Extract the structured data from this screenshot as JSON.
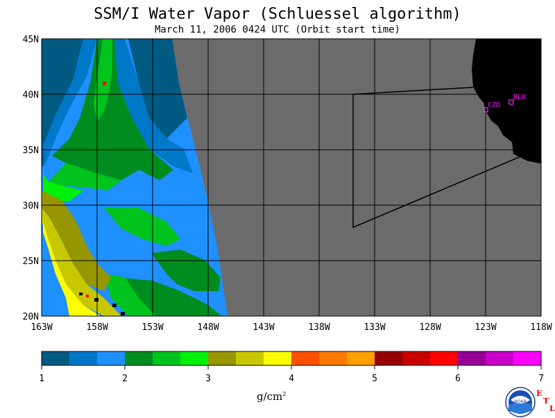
{
  "title": "SSM/I Water Vapor (Schluessel algorithm)",
  "subtitle": "March 11, 2006  0424 UTC  (Orbit start time)",
  "map": {
    "lon_labels": [
      "163W",
      "158W",
      "153W",
      "148W",
      "143W",
      "138W",
      "133W",
      "128W",
      "123W",
      "118W"
    ],
    "lat_labels": [
      "45N",
      "40N",
      "35N",
      "30N",
      "25N",
      "20N"
    ],
    "lon_range": [
      -163,
      -118
    ],
    "lat_range": [
      20,
      45
    ],
    "ocean_nodata_color": "#6b6b6b",
    "land_color": "#000000",
    "stations": [
      {
        "name": "CZD",
        "lon": -123.0,
        "lat": 38.6
      },
      {
        "name": "BLU",
        "lon": -120.7,
        "lat": 39.3
      }
    ]
  },
  "colorbar": {
    "ticks": [
      "1",
      "2",
      "3",
      "4",
      "5",
      "6",
      "7"
    ],
    "unit_text": "g/cm",
    "unit_sup": "2",
    "colors": [
      "#005a82",
      "#0078c8",
      "#1e90ff",
      "#008c1e",
      "#00c31e",
      "#00f00a",
      "#969600",
      "#c8c800",
      "#ffff00",
      "#ff5000",
      "#ff7800",
      "#ffa000",
      "#960000",
      "#c80000",
      "#ff0000",
      "#960096",
      "#c800c8",
      "#ff00ff"
    ]
  },
  "logo": {
    "text": "NOAA",
    "etl_letters": [
      "E",
      "T",
      "L"
    ]
  }
}
